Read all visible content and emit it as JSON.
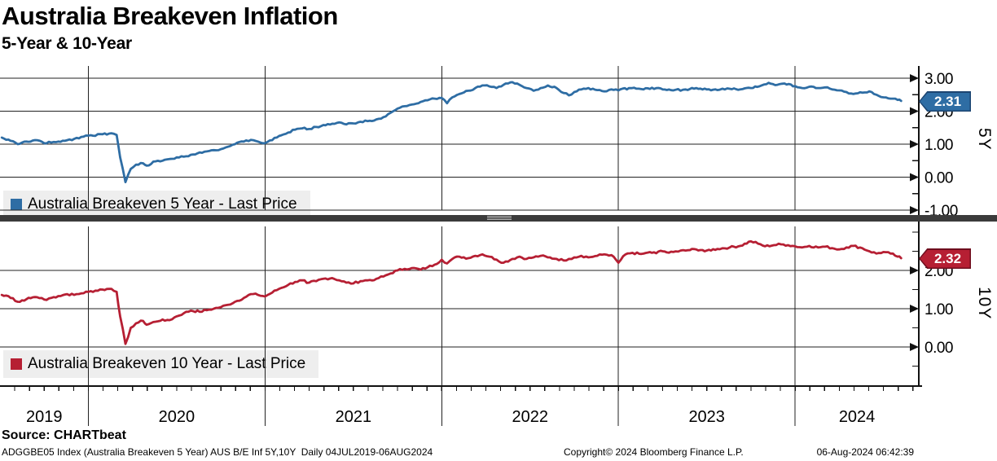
{
  "source_line": "Source: CHARTbeat",
  "footer": {
    "left": "ADGGBE05 Index (Australia Breakeven 5 Year) AUS B/E Inf 5Y,10Y  Daily 04JUL2019-06AUG2024",
    "center": "Copyright© 2024 Bloomberg Finance L.P.",
    "right": "06-Aug-2024 06:42:39"
  },
  "chart_data": {
    "type": "line",
    "title": "Australia Breakeven Inflation",
    "subtitle": "5-Year & 10-Year",
    "grid": true,
    "legend_position": "inside-left-bottom-of-each-panel",
    "x_format": "decimal_year",
    "xlim": [
      2019.5,
      2024.7
    ],
    "x_year_gridlines": [
      2020,
      2021,
      2022,
      2023,
      2024
    ],
    "x_year_labels": [
      {
        "label": "2019",
        "span": [
          2019.5,
          2020
        ]
      },
      {
        "label": "2020",
        "span": [
          2020,
          2021
        ]
      },
      {
        "label": "2021",
        "span": [
          2021,
          2022
        ]
      },
      {
        "label": "2022",
        "span": [
          2022,
          2023
        ]
      },
      {
        "label": "2023",
        "span": [
          2023,
          2024
        ]
      },
      {
        "label": "2024",
        "span": [
          2024,
          2024.7
        ]
      }
    ],
    "panels": [
      {
        "name": "5Y",
        "legend": "Australia Breakeven 5 Year - Last Price",
        "color": "#2e6da4",
        "tag_border": "#1c4571",
        "last_price": "2.31",
        "ylim_labeled": [
          -1.0,
          3.0
        ],
        "yticks": [
          {
            "label": "3.00",
            "value": 3
          },
          {
            "label": "2.00",
            "value": 2
          },
          {
            "label": "1.00",
            "value": 1
          },
          {
            "label": "0.00",
            "value": 0
          },
          {
            "label": "-1.00",
            "value": -1
          }
        ],
        "points": [
          [
            2019.51,
            1.2
          ],
          [
            2019.56,
            1.1
          ],
          [
            2019.6,
            1.0
          ],
          [
            2019.65,
            1.08
          ],
          [
            2019.71,
            1.12
          ],
          [
            2019.75,
            1.03
          ],
          [
            2019.79,
            1.05
          ],
          [
            2019.83,
            1.08
          ],
          [
            2019.88,
            1.12
          ],
          [
            2019.92,
            1.16
          ],
          [
            2019.96,
            1.22
          ],
          [
            2020.0,
            1.26
          ],
          [
            2020.08,
            1.3
          ],
          [
            2020.13,
            1.33
          ],
          [
            2020.16,
            1.28
          ],
          [
            2020.18,
            0.6
          ],
          [
            2020.21,
            -0.15
          ],
          [
            2020.24,
            0.25
          ],
          [
            2020.27,
            0.38
          ],
          [
            2020.31,
            0.42
          ],
          [
            2020.33,
            0.35
          ],
          [
            2020.38,
            0.48
          ],
          [
            2020.42,
            0.5
          ],
          [
            2020.46,
            0.55
          ],
          [
            2020.5,
            0.6
          ],
          [
            2020.54,
            0.62
          ],
          [
            2020.58,
            0.68
          ],
          [
            2020.63,
            0.75
          ],
          [
            2020.67,
            0.78
          ],
          [
            2020.71,
            0.82
          ],
          [
            2020.75,
            0.85
          ],
          [
            2020.79,
            0.92
          ],
          [
            2020.83,
            1.0
          ],
          [
            2020.88,
            1.08
          ],
          [
            2020.92,
            1.13
          ],
          [
            2020.96,
            1.08
          ],
          [
            2021.0,
            1.03
          ],
          [
            2021.04,
            1.12
          ],
          [
            2021.08,
            1.25
          ],
          [
            2021.13,
            1.35
          ],
          [
            2021.17,
            1.44
          ],
          [
            2021.21,
            1.48
          ],
          [
            2021.25,
            1.46
          ],
          [
            2021.29,
            1.52
          ],
          [
            2021.33,
            1.58
          ],
          [
            2021.38,
            1.62
          ],
          [
            2021.42,
            1.66
          ],
          [
            2021.46,
            1.6
          ],
          [
            2021.5,
            1.63
          ],
          [
            2021.54,
            1.68
          ],
          [
            2021.58,
            1.7
          ],
          [
            2021.63,
            1.75
          ],
          [
            2021.67,
            1.82
          ],
          [
            2021.71,
            1.95
          ],
          [
            2021.75,
            2.08
          ],
          [
            2021.79,
            2.15
          ],
          [
            2021.83,
            2.2
          ],
          [
            2021.88,
            2.28
          ],
          [
            2021.92,
            2.33
          ],
          [
            2021.96,
            2.38
          ],
          [
            2022.0,
            2.4
          ],
          [
            2022.03,
            2.24
          ],
          [
            2022.06,
            2.42
          ],
          [
            2022.1,
            2.52
          ],
          [
            2022.15,
            2.62
          ],
          [
            2022.19,
            2.7
          ],
          [
            2022.23,
            2.78
          ],
          [
            2022.27,
            2.75
          ],
          [
            2022.31,
            2.7
          ],
          [
            2022.35,
            2.8
          ],
          [
            2022.4,
            2.88
          ],
          [
            2022.44,
            2.8
          ],
          [
            2022.48,
            2.7
          ],
          [
            2022.52,
            2.62
          ],
          [
            2022.56,
            2.7
          ],
          [
            2022.6,
            2.78
          ],
          [
            2022.65,
            2.7
          ],
          [
            2022.69,
            2.55
          ],
          [
            2022.72,
            2.48
          ],
          [
            2022.75,
            2.58
          ],
          [
            2022.79,
            2.66
          ],
          [
            2022.83,
            2.7
          ],
          [
            2022.88,
            2.64
          ],
          [
            2022.92,
            2.6
          ],
          [
            2022.96,
            2.66
          ],
          [
            2023.0,
            2.63
          ],
          [
            2023.06,
            2.7
          ],
          [
            2023.13,
            2.67
          ],
          [
            2023.19,
            2.71
          ],
          [
            2023.25,
            2.66
          ],
          [
            2023.31,
            2.63
          ],
          [
            2023.38,
            2.66
          ],
          [
            2023.44,
            2.7
          ],
          [
            2023.5,
            2.66
          ],
          [
            2023.56,
            2.64
          ],
          [
            2023.63,
            2.68
          ],
          [
            2023.69,
            2.66
          ],
          [
            2023.75,
            2.7
          ],
          [
            2023.81,
            2.78
          ],
          [
            2023.85,
            2.86
          ],
          [
            2023.9,
            2.8
          ],
          [
            2023.94,
            2.84
          ],
          [
            2024.0,
            2.76
          ],
          [
            2024.04,
            2.7
          ],
          [
            2024.08,
            2.74
          ],
          [
            2024.13,
            2.7
          ],
          [
            2024.17,
            2.72
          ],
          [
            2024.21,
            2.66
          ],
          [
            2024.25,
            2.63
          ],
          [
            2024.29,
            2.58
          ],
          [
            2024.33,
            2.52
          ],
          [
            2024.38,
            2.56
          ],
          [
            2024.42,
            2.6
          ],
          [
            2024.46,
            2.5
          ],
          [
            2024.5,
            2.42
          ],
          [
            2024.54,
            2.38
          ],
          [
            2024.58,
            2.34
          ],
          [
            2024.6,
            2.31
          ]
        ]
      },
      {
        "name": "10Y",
        "legend": "Australia Breakeven 10 Year - Last Price",
        "color": "#b61f33",
        "tag_border": "#6e0e1e",
        "last_price": "2.32",
        "ylim_labeled": [
          0.0,
          2.0
        ],
        "yticks": [
          {
            "label": "2.00",
            "value": 2
          },
          {
            "label": "1.00",
            "value": 1
          },
          {
            "label": "0.00",
            "value": 0
          }
        ],
        "points": [
          [
            2019.51,
            1.36
          ],
          [
            2019.56,
            1.28
          ],
          [
            2019.6,
            1.18
          ],
          [
            2019.65,
            1.25
          ],
          [
            2019.71,
            1.3
          ],
          [
            2019.75,
            1.24
          ],
          [
            2019.79,
            1.28
          ],
          [
            2019.83,
            1.33
          ],
          [
            2019.88,
            1.38
          ],
          [
            2019.92,
            1.36
          ],
          [
            2019.96,
            1.4
          ],
          [
            2020.0,
            1.44
          ],
          [
            2020.08,
            1.5
          ],
          [
            2020.13,
            1.52
          ],
          [
            2020.16,
            1.44
          ],
          [
            2020.18,
            0.8
          ],
          [
            2020.21,
            0.08
          ],
          [
            2020.24,
            0.5
          ],
          [
            2020.27,
            0.62
          ],
          [
            2020.31,
            0.68
          ],
          [
            2020.33,
            0.58
          ],
          [
            2020.38,
            0.66
          ],
          [
            2020.42,
            0.72
          ],
          [
            2020.46,
            0.7
          ],
          [
            2020.5,
            0.8
          ],
          [
            2020.54,
            0.88
          ],
          [
            2020.58,
            0.95
          ],
          [
            2020.63,
            0.92
          ],
          [
            2020.67,
            0.96
          ],
          [
            2020.71,
            1.0
          ],
          [
            2020.75,
            1.04
          ],
          [
            2020.79,
            1.1
          ],
          [
            2020.83,
            1.18
          ],
          [
            2020.88,
            1.28
          ],
          [
            2020.92,
            1.38
          ],
          [
            2020.96,
            1.36
          ],
          [
            2021.0,
            1.32
          ],
          [
            2021.04,
            1.42
          ],
          [
            2021.08,
            1.52
          ],
          [
            2021.13,
            1.62
          ],
          [
            2021.17,
            1.7
          ],
          [
            2021.21,
            1.74
          ],
          [
            2021.25,
            1.68
          ],
          [
            2021.29,
            1.72
          ],
          [
            2021.33,
            1.78
          ],
          [
            2021.38,
            1.8
          ],
          [
            2021.42,
            1.74
          ],
          [
            2021.46,
            1.68
          ],
          [
            2021.5,
            1.66
          ],
          [
            2021.54,
            1.72
          ],
          [
            2021.58,
            1.74
          ],
          [
            2021.63,
            1.78
          ],
          [
            2021.67,
            1.84
          ],
          [
            2021.71,
            1.92
          ],
          [
            2021.75,
            2.0
          ],
          [
            2021.79,
            2.04
          ],
          [
            2021.83,
            2.06
          ],
          [
            2021.88,
            2.02
          ],
          [
            2021.92,
            2.08
          ],
          [
            2021.96,
            2.15
          ],
          [
            2022.0,
            2.28
          ],
          [
            2022.03,
            2.18
          ],
          [
            2022.06,
            2.3
          ],
          [
            2022.1,
            2.36
          ],
          [
            2022.15,
            2.32
          ],
          [
            2022.19,
            2.38
          ],
          [
            2022.23,
            2.42
          ],
          [
            2022.27,
            2.36
          ],
          [
            2022.31,
            2.28
          ],
          [
            2022.35,
            2.2
          ],
          [
            2022.4,
            2.3
          ],
          [
            2022.44,
            2.36
          ],
          [
            2022.48,
            2.3
          ],
          [
            2022.52,
            2.34
          ],
          [
            2022.56,
            2.38
          ],
          [
            2022.6,
            2.34
          ],
          [
            2022.65,
            2.3
          ],
          [
            2022.69,
            2.26
          ],
          [
            2022.72,
            2.3
          ],
          [
            2022.75,
            2.34
          ],
          [
            2022.79,
            2.38
          ],
          [
            2022.83,
            2.34
          ],
          [
            2022.88,
            2.38
          ],
          [
            2022.92,
            2.42
          ],
          [
            2022.96,
            2.4
          ],
          [
            2023.0,
            2.2
          ],
          [
            2023.04,
            2.42
          ],
          [
            2023.08,
            2.46
          ],
          [
            2023.13,
            2.43
          ],
          [
            2023.19,
            2.46
          ],
          [
            2023.25,
            2.5
          ],
          [
            2023.31,
            2.48
          ],
          [
            2023.38,
            2.52
          ],
          [
            2023.44,
            2.55
          ],
          [
            2023.5,
            2.52
          ],
          [
            2023.56,
            2.56
          ],
          [
            2023.63,
            2.6
          ],
          [
            2023.69,
            2.64
          ],
          [
            2023.75,
            2.76
          ],
          [
            2023.79,
            2.7
          ],
          [
            2023.83,
            2.63
          ],
          [
            2023.88,
            2.66
          ],
          [
            2023.92,
            2.68
          ],
          [
            2023.96,
            2.66
          ],
          [
            2024.0,
            2.63
          ],
          [
            2024.04,
            2.6
          ],
          [
            2024.08,
            2.64
          ],
          [
            2024.13,
            2.6
          ],
          [
            2024.17,
            2.62
          ],
          [
            2024.21,
            2.58
          ],
          [
            2024.25,
            2.55
          ],
          [
            2024.29,
            2.6
          ],
          [
            2024.33,
            2.64
          ],
          [
            2024.38,
            2.58
          ],
          [
            2024.42,
            2.5
          ],
          [
            2024.46,
            2.44
          ],
          [
            2024.5,
            2.48
          ],
          [
            2024.54,
            2.44
          ],
          [
            2024.58,
            2.36
          ],
          [
            2024.6,
            2.32
          ]
        ]
      }
    ]
  }
}
